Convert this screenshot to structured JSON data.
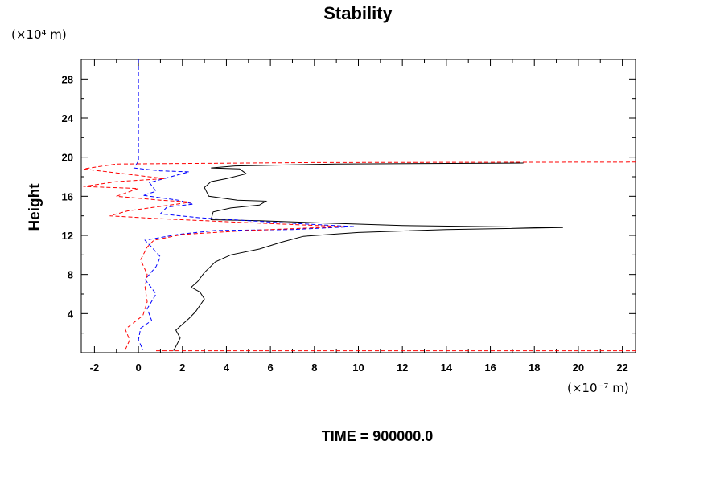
{
  "chart_data": {
    "type": "line",
    "title": "Stability",
    "ylabel": "Height",
    "xlabel": "",
    "x_unit": "(×10⁻⁷ m)",
    "y_unit": "(×10⁴ m)",
    "footer": "TIME = 900000.0",
    "xlim": [
      -2.6,
      22.6
    ],
    "ylim": [
      0,
      30
    ],
    "x_ticks": [
      -2,
      0,
      2,
      4,
      6,
      8,
      10,
      12,
      14,
      16,
      18,
      20,
      22
    ],
    "x_tick_labels": [
      "-2",
      "0",
      "2",
      "4",
      "6",
      "8",
      "10",
      "12",
      "14",
      "16",
      "18",
      "20",
      "22"
    ],
    "y_ticks": [
      4,
      8,
      12,
      16,
      20,
      24,
      28
    ],
    "y_tick_labels": [
      "4",
      "8",
      "12",
      "16",
      "20",
      "24",
      "28"
    ],
    "grid": false,
    "legend": "none",
    "series": [
      {
        "color": "#000000",
        "style": "solid",
        "points": [
          [
            1.6,
            0.2
          ],
          [
            1.9,
            1.5
          ],
          [
            1.7,
            2.3
          ],
          [
            2.3,
            3.5
          ],
          [
            2.6,
            4.2
          ],
          [
            3.0,
            5.5
          ],
          [
            2.8,
            6.2
          ],
          [
            2.4,
            6.7
          ],
          [
            2.7,
            7.3
          ],
          [
            3.0,
            8.2
          ],
          [
            3.5,
            9.3
          ],
          [
            4.2,
            10.0
          ],
          [
            5.5,
            10.6
          ],
          [
            6.5,
            11.3
          ],
          [
            7.5,
            11.9
          ],
          [
            10.0,
            12.3
          ],
          [
            14.0,
            12.6
          ],
          [
            19.3,
            12.8
          ],
          [
            12.0,
            13.0
          ],
          [
            8.0,
            13.3
          ],
          [
            5.5,
            13.5
          ],
          [
            3.3,
            13.6
          ],
          [
            3.4,
            14.4
          ],
          [
            4.2,
            14.8
          ],
          [
            5.5,
            15.1
          ],
          [
            5.8,
            15.5
          ],
          [
            4.5,
            15.6
          ],
          [
            3.2,
            16.0
          ],
          [
            3.0,
            16.9
          ],
          [
            3.3,
            17.5
          ],
          [
            4.0,
            17.8
          ],
          [
            4.9,
            18.3
          ],
          [
            4.6,
            18.8
          ],
          [
            3.3,
            18.9
          ],
          [
            4.4,
            19.1
          ],
          [
            9.0,
            19.3
          ],
          [
            17.5,
            19.4
          ]
        ]
      },
      {
        "color": "#0000ff",
        "style": "dashed",
        "points": [
          [
            0.0,
            30.0
          ],
          [
            0.0,
            19.6
          ],
          [
            -0.2,
            18.9
          ],
          [
            1.0,
            18.6
          ],
          [
            2.3,
            18.5
          ],
          [
            1.8,
            18.2
          ],
          [
            0.5,
            17.4
          ],
          [
            0.8,
            16.5
          ],
          [
            0.2,
            16.1
          ],
          [
            1.8,
            15.6
          ],
          [
            2.5,
            15.2
          ],
          [
            1.3,
            14.9
          ],
          [
            1.0,
            14.2
          ],
          [
            2.8,
            13.8
          ],
          [
            6.5,
            13.3
          ],
          [
            9.8,
            12.9
          ],
          [
            7.0,
            12.6
          ],
          [
            3.5,
            12.5
          ],
          [
            1.8,
            12.1
          ],
          [
            0.3,
            11.5
          ],
          [
            0.6,
            10.8
          ],
          [
            1.0,
            9.8
          ],
          [
            0.8,
            8.8
          ],
          [
            0.3,
            7.5
          ],
          [
            0.8,
            6.0
          ],
          [
            0.4,
            4.5
          ],
          [
            0.6,
            3.3
          ],
          [
            0.1,
            2.5
          ],
          [
            0.0,
            1.3
          ],
          [
            0.2,
            0.3
          ]
        ]
      },
      {
        "color": "#ff0000",
        "style": "dashed",
        "points": [
          [
            -0.6,
            0.3
          ],
          [
            -0.4,
            1.3
          ],
          [
            -0.6,
            2.4
          ],
          [
            0.2,
            3.8
          ],
          [
            0.4,
            5.2
          ],
          [
            0.3,
            6.7
          ],
          [
            0.4,
            8.0
          ],
          [
            0.1,
            9.5
          ],
          [
            0.4,
            10.8
          ],
          [
            0.7,
            11.5
          ],
          [
            2.0,
            12.1
          ],
          [
            5.0,
            12.5
          ],
          [
            9.3,
            12.9
          ],
          [
            5.0,
            13.3
          ],
          [
            1.0,
            13.7
          ],
          [
            -1.3,
            14.0
          ],
          [
            -0.5,
            14.5
          ],
          [
            0.8,
            14.9
          ],
          [
            2.4,
            15.4
          ],
          [
            1.0,
            15.6
          ],
          [
            -1.0,
            16.0
          ],
          [
            0.0,
            16.8
          ],
          [
            -2.5,
            17.0
          ],
          [
            -1.0,
            17.5
          ],
          [
            1.2,
            17.8
          ],
          [
            -2.5,
            18.8
          ],
          [
            -1.0,
            19.3
          ],
          [
            8.0,
            19.45
          ],
          [
            22.6,
            19.5
          ]
        ]
      },
      {
        "color": "#ff0000",
        "style": "dashed",
        "points": [
          [
            0.8,
            0.2
          ],
          [
            22.6,
            0.2
          ]
        ]
      }
    ]
  }
}
